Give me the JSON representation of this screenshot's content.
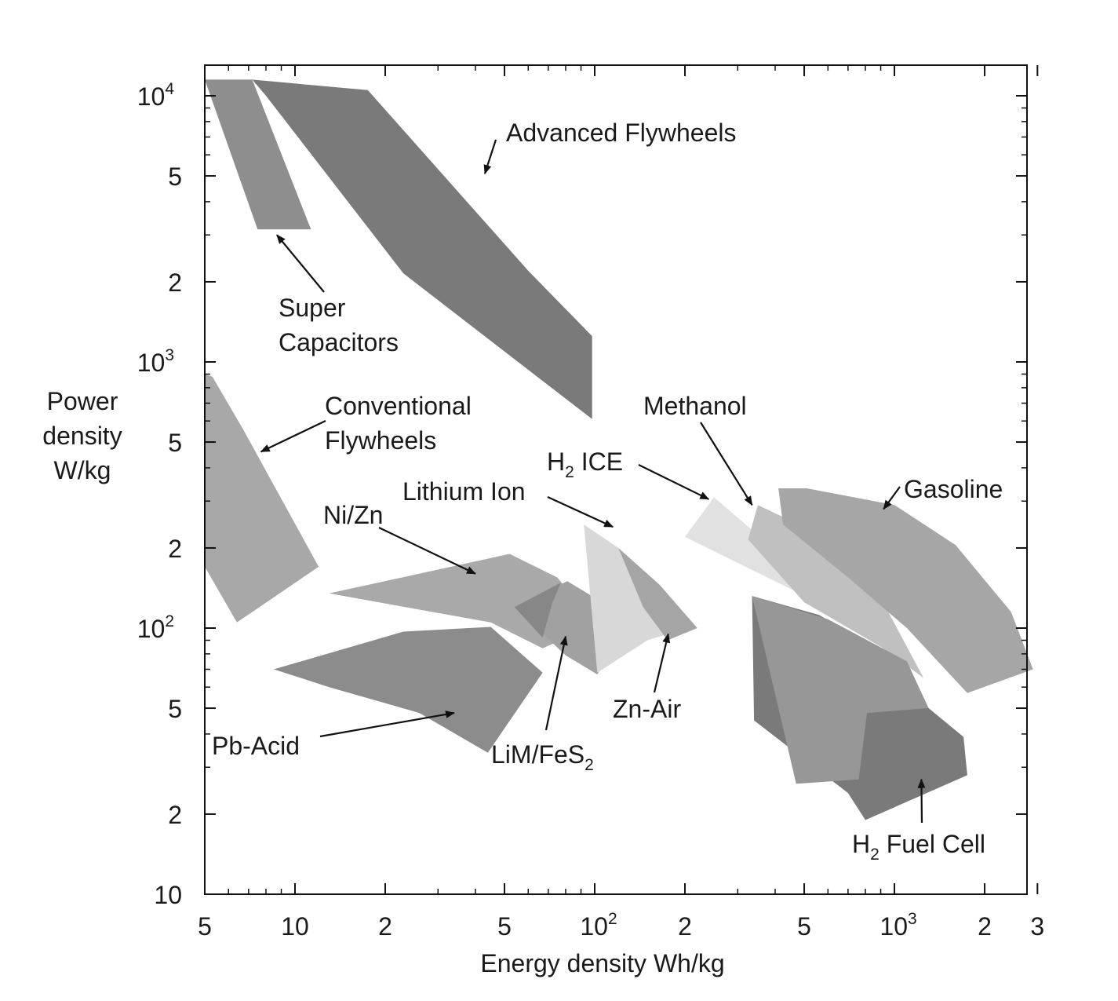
{
  "chart_data": {
    "type": "area",
    "xscale": "log",
    "yscale": "log",
    "xlabel": "Energy density Wh/kg",
    "ylabel": [
      "Power",
      "density",
      "W/kg"
    ],
    "xlim": [
      5,
      3700
    ],
    "ylim": [
      10,
      14000
    ],
    "grid": false,
    "x_ticks": [
      {
        "value": 5,
        "base": "5",
        "sup": ""
      },
      {
        "value": 10,
        "base": "10",
        "sup": ""
      },
      {
        "value": 20,
        "base": "2",
        "sup": ""
      },
      {
        "value": 50,
        "base": "5",
        "sup": ""
      },
      {
        "value": 100,
        "base": "10",
        "sup": "2"
      },
      {
        "value": 200,
        "base": "2",
        "sup": ""
      },
      {
        "value": 500,
        "base": "5",
        "sup": ""
      },
      {
        "value": 1000,
        "base": "10",
        "sup": "3"
      },
      {
        "value": 2000,
        "base": "2",
        "sup": ""
      },
      {
        "value": 3000,
        "base": "3",
        "sup": ""
      }
    ],
    "y_ticks": [
      {
        "value": 10,
        "base": "10",
        "sup": ""
      },
      {
        "value": 20,
        "base": "2",
        "sup": ""
      },
      {
        "value": 50,
        "base": "5",
        "sup": ""
      },
      {
        "value": 100,
        "base": "10",
        "sup": "2"
      },
      {
        "value": 200,
        "base": "2",
        "sup": ""
      },
      {
        "value": 500,
        "base": "5",
        "sup": ""
      },
      {
        "value": 1000,
        "base": "10",
        "sup": "3"
      },
      {
        "value": 2000,
        "base": "2",
        "sup": ""
      },
      {
        "value": 5000,
        "base": "5",
        "sup": ""
      },
      {
        "value": 10000,
        "base": "10",
        "sup": "4"
      }
    ],
    "regions": [
      {
        "name": "Conventional Flywheels",
        "color": "#a8a8a8",
        "points": [
          [
            5,
            900
          ],
          [
            5.3,
            880
          ],
          [
            6.7,
            560
          ],
          [
            12,
            170
          ],
          [
            6.4,
            105
          ],
          [
            5,
            170
          ]
        ]
      },
      {
        "name": "Super Capacitors",
        "color": "#8e8e8e",
        "points": [
          [
            5,
            11500
          ],
          [
            7.2,
            11500
          ],
          [
            11.3,
            3150
          ],
          [
            7.5,
            3150
          ]
        ]
      },
      {
        "name": "Advanced Flywheels",
        "color": "#7a7a7a",
        "points": [
          [
            7.2,
            11500
          ],
          [
            17.5,
            10500
          ],
          [
            60,
            2200
          ],
          [
            98,
            1250
          ],
          [
            98,
            610
          ],
          [
            23,
            2150
          ],
          [
            8,
            10000
          ]
        ]
      },
      {
        "name": "Ni/Zn",
        "color": "#a9a9a9",
        "points": [
          [
            13,
            135
          ],
          [
            52,
            190
          ],
          [
            75,
            155
          ],
          [
            101,
            103
          ],
          [
            67,
            84
          ],
          [
            45,
            105
          ]
        ]
      },
      {
        "name": "Pb-Acid",
        "color": "#8c8c8c",
        "points": [
          [
            8.5,
            70
          ],
          [
            23,
            97
          ],
          [
            45,
            101
          ],
          [
            67,
            68
          ],
          [
            44,
            34
          ],
          [
            26,
            48
          ],
          [
            13,
            60
          ]
        ]
      },
      {
        "name": "LiM/FeS2",
        "color": "#a1a1a1",
        "points": [
          [
            54,
            120
          ],
          [
            81,
            150
          ],
          [
            100,
            130
          ],
          [
            120,
            90
          ],
          [
            102,
            67
          ],
          [
            80,
            79
          ]
        ]
      },
      {
        "name": "LiM/FeS2 overlap",
        "color": "#878787",
        "points": [
          [
            54,
            120
          ],
          [
            77,
            148
          ],
          [
            72,
            123
          ],
          [
            67,
            92
          ]
        ]
      },
      {
        "name": "Lithium Ion",
        "color": "#d8d8d8",
        "points": [
          [
            92,
            245
          ],
          [
            120,
            200
          ],
          [
            175,
            95
          ],
          [
            150,
            90
          ],
          [
            102,
            68
          ]
        ]
      },
      {
        "name": "Zn-Air",
        "color": "#a5a5a5",
        "points": [
          [
            120,
            200
          ],
          [
            165,
            145
          ],
          [
            220,
            100
          ],
          [
            175,
            90
          ],
          [
            145,
            120
          ]
        ]
      },
      {
        "name": "H2 ICE",
        "color": "#e1e1e1",
        "points": [
          [
            200,
            220
          ],
          [
            250,
            310
          ],
          [
            900,
            90
          ],
          [
            700,
            110
          ]
        ]
      },
      {
        "name": "Methanol",
        "color": "#c0c0c0",
        "points": [
          [
            325,
            215
          ],
          [
            350,
            290
          ],
          [
            700,
            200
          ],
          [
            900,
            130
          ],
          [
            1250,
            65
          ],
          [
            900,
            85
          ],
          [
            500,
            125
          ]
        ]
      },
      {
        "name": "Gasoline",
        "color": "#a6a6a6",
        "points": [
          [
            410,
            335
          ],
          [
            510,
            335
          ],
          [
            1000,
            290
          ],
          [
            1600,
            205
          ],
          [
            2450,
            115
          ],
          [
            2900,
            70
          ],
          [
            1750,
            57
          ],
          [
            1100,
            100
          ],
          [
            700,
            155
          ],
          [
            425,
            245
          ]
        ]
      },
      {
        "name": "H2 Fuel Cell dark",
        "color": "#7a7a7a",
        "points": [
          [
            335,
            132
          ],
          [
            560,
            112
          ],
          [
            1050,
            75
          ],
          [
            1300,
            50
          ],
          [
            1700,
            39
          ],
          [
            1750,
            28
          ],
          [
            800,
            19
          ],
          [
            700,
            24
          ],
          [
            340,
            45
          ]
        ]
      },
      {
        "name": "H2 Fuel Cell light",
        "color": "#979797",
        "points": [
          [
            335,
            132
          ],
          [
            600,
            108
          ],
          [
            1100,
            75
          ],
          [
            1300,
            50
          ],
          [
            810,
            48
          ],
          [
            760,
            27
          ],
          [
            470,
            26
          ]
        ]
      }
    ],
    "annotations": [
      {
        "id": "advanced-flywheels",
        "lines": [
          [
            {
              "t": "Advanced Flywheels",
              "s": ""
            }
          ]
        ],
        "arrow_to": [
          43,
          5100
        ]
      },
      {
        "id": "super-capacitors",
        "lines": [
          [
            {
              "t": "Super",
              "s": ""
            }
          ],
          [
            {
              "t": "Capacitors",
              "s": ""
            }
          ]
        ],
        "arrow_to": [
          8.7,
          3000
        ]
      },
      {
        "id": "conventional-flywheels",
        "lines": [
          [
            {
              "t": "Conventional",
              "s": ""
            }
          ],
          [
            {
              "t": "Flywheels",
              "s": ""
            }
          ]
        ],
        "arrow_to": [
          7.7,
          460
        ]
      },
      {
        "id": "methanol",
        "lines": [
          [
            {
              "t": "Methanol",
              "s": ""
            }
          ]
        ],
        "arrow_to": [
          335,
          290
        ]
      },
      {
        "id": "h2-ice",
        "lines": [
          [
            {
              "t": "H",
              "s": ""
            },
            {
              "t": "2",
              "s": "sub"
            },
            {
              "t": " ICE",
              "s": ""
            }
          ]
        ],
        "arrow_to": [
          240,
          305
        ]
      },
      {
        "id": "gasoline",
        "lines": [
          [
            {
              "t": "Gasoline",
              "s": ""
            }
          ]
        ],
        "arrow_to": [
          920,
          280
        ]
      },
      {
        "id": "lithium-ion",
        "lines": [
          [
            {
              "t": "Lithium Ion",
              "s": ""
            }
          ]
        ],
        "arrow_to": [
          115,
          240
        ]
      },
      {
        "id": "ni-zn",
        "lines": [
          [
            {
              "t": "Ni/Zn",
              "s": ""
            }
          ]
        ],
        "arrow_to": [
          40,
          160
        ]
      },
      {
        "id": "limfes2",
        "lines": [
          [
            {
              "t": "LiM/FeS",
              "s": ""
            },
            {
              "t": "2",
              "s": "sub"
            }
          ]
        ],
        "arrow_to": [
          80,
          93
        ]
      },
      {
        "id": "zn-air",
        "lines": [
          [
            {
              "t": "Zn-Air",
              "s": ""
            }
          ]
        ],
        "arrow_to": [
          176,
          95
        ]
      },
      {
        "id": "pb-acid",
        "lines": [
          [
            {
              "t": "Pb-Acid",
              "s": ""
            }
          ]
        ],
        "arrow_to": [
          34,
          48
        ]
      },
      {
        "id": "h2-fuel-cell",
        "lines": [
          [
            {
              "t": "H",
              "s": ""
            },
            {
              "t": "2",
              "s": "sub"
            },
            {
              "t": " Fuel Cell",
              "s": ""
            }
          ]
        ],
        "arrow_to": [
          1230,
          27
        ]
      }
    ]
  }
}
